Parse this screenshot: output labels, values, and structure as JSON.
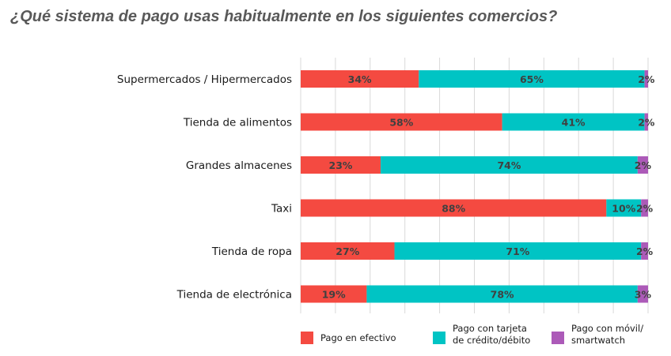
{
  "chart_data": {
    "type": "bar",
    "orientation": "horizontal",
    "stacked": true,
    "title": "¿Qué sistema de pago usas habitualmente en los siguientes comercios?",
    "categories": [
      "Supermercados / Hipermercados",
      "Tienda de alimentos",
      "Grandes almacenes",
      "Taxi",
      "Tienda de ropa",
      "Tienda de electrónica"
    ],
    "series": [
      {
        "name": "Pago en efectivo",
        "color": "#f44a41",
        "values": [
          34,
          58,
          23,
          88,
          27,
          19
        ],
        "labels": [
          "34%",
          "58%",
          "23%",
          "88%",
          "27%",
          "19%"
        ]
      },
      {
        "name": "Pago con tarjeta de crédito/débito",
        "color": "#00c4c4",
        "values": [
          65,
          41,
          74,
          10,
          71,
          78
        ],
        "labels": [
          "65%",
          "41%",
          "74%",
          "10%",
          "71%",
          "78%"
        ]
      },
      {
        "name": "Pago con móvil/ smartwatch",
        "color": "#ac5ab8",
        "values": [
          2,
          2,
          2,
          2,
          2,
          3
        ],
        "labels": [
          "2%",
          "2%",
          "2%",
          "2%",
          "2%",
          "3%"
        ]
      }
    ],
    "legend": [
      {
        "lines": [
          "Pago en efectivo"
        ],
        "color": "#f44a41"
      },
      {
        "lines": [
          "Pago con tarjeta",
          "de crédito/débito"
        ],
        "color": "#00c4c4"
      },
      {
        "lines": [
          "Pago con móvil/",
          "smartwatch"
        ],
        "color": "#ac5ab8"
      }
    ],
    "xlim": [
      0,
      100
    ],
    "grid": true,
    "legend_position": "bottom"
  }
}
